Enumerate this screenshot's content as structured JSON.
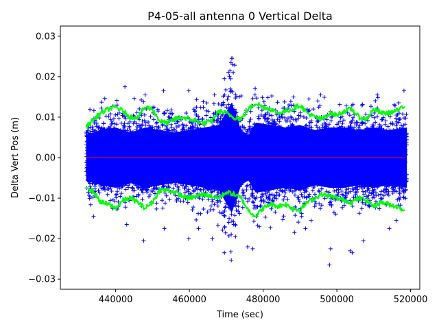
{
  "chart_data": {
    "type": "scatter",
    "title": "P4-05-all antenna 0 Vertical Delta",
    "xlabel": "Time (sec)",
    "ylabel": "Delta Vert Pos (m)",
    "xlim": [
      425000,
      522500
    ],
    "ylim": [
      -0.0325,
      0.0325
    ],
    "xticks": [
      440000,
      460000,
      480000,
      500000,
      520000
    ],
    "xtick_labels": [
      "440000",
      "460000",
      "480000",
      "500000",
      "520000"
    ],
    "yticks": [
      -0.03,
      -0.02,
      -0.01,
      0.0,
      0.01,
      0.02,
      0.03
    ],
    "ytick_labels": [
      "−0.03",
      "−0.02",
      "−0.01",
      "0.00",
      "0.01",
      "0.02",
      "0.03"
    ],
    "grid": false,
    "series": [
      {
        "name": "delta",
        "marker": "+",
        "color": "#0000ff",
        "x_range": [
          432000,
          519000
        ],
        "envelope": [
          [
            432000,
            0.009
          ],
          [
            436000,
            0.011
          ],
          [
            440000,
            0.012
          ],
          [
            444000,
            0.01
          ],
          [
            448000,
            0.012
          ],
          [
            452000,
            0.011
          ],
          [
            456000,
            0.01
          ],
          [
            460000,
            0.011
          ],
          [
            464000,
            0.012
          ],
          [
            468000,
            0.013
          ],
          [
            471500,
            0.022
          ],
          [
            474000,
            0.011
          ],
          [
            476000,
            0.009
          ],
          [
            478000,
            0.014
          ],
          [
            482000,
            0.013
          ],
          [
            486000,
            0.012
          ],
          [
            490000,
            0.013
          ],
          [
            494000,
            0.011
          ],
          [
            498000,
            0.012
          ],
          [
            502000,
            0.012
          ],
          [
            506000,
            0.011
          ],
          [
            510000,
            0.012
          ],
          [
            514000,
            0.011
          ],
          [
            519000,
            0.012
          ]
        ],
        "outliers": [
          [
            471500,
            0.0245
          ],
          [
            471300,
            0.0235
          ],
          [
            471700,
            0.023
          ],
          [
            471000,
            0.0215
          ],
          [
            471900,
            0.021
          ],
          [
            442500,
            0.0175
          ],
          [
            448000,
            0.0155
          ],
          [
            453000,
            0.0165
          ],
          [
            459800,
            0.0165
          ],
          [
            466800,
            0.0155
          ],
          [
            469500,
            0.0195
          ],
          [
            477800,
            0.0155
          ],
          [
            488200,
            0.015
          ],
          [
            492400,
            0.0145
          ],
          [
            495600,
            0.0155
          ],
          [
            511000,
            0.0155
          ],
          [
            518200,
            0.0165
          ],
          [
            469500,
            -0.0235
          ],
          [
            475800,
            -0.022
          ],
          [
            477200,
            -0.0225
          ],
          [
            498000,
            -0.0265
          ],
          [
            498300,
            -0.0225
          ],
          [
            504200,
            -0.0235
          ],
          [
            503600,
            -0.023
          ],
          [
            447600,
            -0.0205
          ],
          [
            459800,
            -0.02
          ],
          [
            466200,
            -0.02
          ],
          [
            472500,
            -0.0195
          ],
          [
            488500,
            -0.0185
          ],
          [
            507200,
            -0.0205
          ],
          [
            514200,
            -0.0175
          ],
          [
            516100,
            -0.0155
          ],
          [
            434000,
            -0.0145
          ],
          [
            443000,
            -0.0165
          ],
          [
            453200,
            -0.0175
          ],
          [
            462500,
            -0.0175
          ],
          [
            491500,
            -0.0175
          ]
        ]
      },
      {
        "name": "upper_band",
        "color": "#00ff00",
        "points": [
          [
            432000,
            0.0075
          ],
          [
            434000,
            0.0095
          ],
          [
            436000,
            0.011
          ],
          [
            438000,
            0.012
          ],
          [
            440000,
            0.0125
          ],
          [
            442000,
            0.0115
          ],
          [
            444000,
            0.01
          ],
          [
            446000,
            0.01
          ],
          [
            448000,
            0.0125
          ],
          [
            450000,
            0.012
          ],
          [
            452000,
            0.009
          ],
          [
            454000,
            0.0085
          ],
          [
            456000,
            0.0095
          ],
          [
            458000,
            0.01
          ],
          [
            460000,
            0.0095
          ],
          [
            462000,
            0.009
          ],
          [
            464000,
            0.0085
          ],
          [
            466000,
            0.009
          ],
          [
            468000,
            0.0115
          ],
          [
            470000,
            0.011
          ],
          [
            472000,
            0.01
          ],
          [
            474000,
            0.0095
          ],
          [
            476000,
            0.012
          ],
          [
            478000,
            0.0135
          ],
          [
            480000,
            0.0125
          ],
          [
            482000,
            0.012
          ],
          [
            484000,
            0.011
          ],
          [
            486000,
            0.0115
          ],
          [
            488000,
            0.012
          ],
          [
            490000,
            0.013
          ],
          [
            492000,
            0.011
          ],
          [
            494000,
            0.01
          ],
          [
            496000,
            0.0095
          ],
          [
            498000,
            0.011
          ],
          [
            500000,
            0.0105
          ],
          [
            502000,
            0.0115
          ],
          [
            504000,
            0.012
          ],
          [
            506000,
            0.01
          ],
          [
            508000,
            0.0095
          ],
          [
            510000,
            0.012
          ],
          [
            512000,
            0.011
          ],
          [
            514000,
            0.011
          ],
          [
            516000,
            0.0115
          ],
          [
            518500,
            0.0125
          ]
        ]
      },
      {
        "name": "lower_band",
        "color": "#00ff00",
        "points": [
          [
            432000,
            -0.007
          ],
          [
            434000,
            -0.0085
          ],
          [
            436000,
            -0.011
          ],
          [
            438000,
            -0.0115
          ],
          [
            440000,
            -0.0125
          ],
          [
            442000,
            -0.0105
          ],
          [
            444000,
            -0.01
          ],
          [
            446000,
            -0.011
          ],
          [
            448000,
            -0.0125
          ],
          [
            450000,
            -0.011
          ],
          [
            452000,
            -0.008
          ],
          [
            454000,
            -0.008
          ],
          [
            456000,
            -0.0085
          ],
          [
            458000,
            -0.0095
          ],
          [
            460000,
            -0.01
          ],
          [
            462000,
            -0.0095
          ],
          [
            464000,
            -0.009
          ],
          [
            466000,
            -0.0095
          ],
          [
            468000,
            -0.01
          ],
          [
            470000,
            -0.0085
          ],
          [
            472000,
            -0.009
          ],
          [
            474000,
            -0.01
          ],
          [
            476000,
            -0.013
          ],
          [
            478000,
            -0.0145
          ],
          [
            480000,
            -0.0125
          ],
          [
            482000,
            -0.0115
          ],
          [
            484000,
            -0.012
          ],
          [
            486000,
            -0.0115
          ],
          [
            488000,
            -0.0125
          ],
          [
            490000,
            -0.013
          ],
          [
            492000,
            -0.011
          ],
          [
            494000,
            -0.01
          ],
          [
            496000,
            -0.009
          ],
          [
            498000,
            -0.0095
          ],
          [
            500000,
            -0.01
          ],
          [
            502000,
            -0.0105
          ],
          [
            504000,
            -0.011
          ],
          [
            506000,
            -0.01
          ],
          [
            508000,
            -0.0105
          ],
          [
            510000,
            -0.012
          ],
          [
            512000,
            -0.011
          ],
          [
            514000,
            -0.0115
          ],
          [
            516000,
            -0.012
          ],
          [
            518500,
            -0.013
          ]
        ]
      },
      {
        "name": "zero_line",
        "color": "#ff0000",
        "points": [
          [
            432000,
            0.0
          ],
          [
            518500,
            0.0
          ]
        ]
      }
    ]
  }
}
